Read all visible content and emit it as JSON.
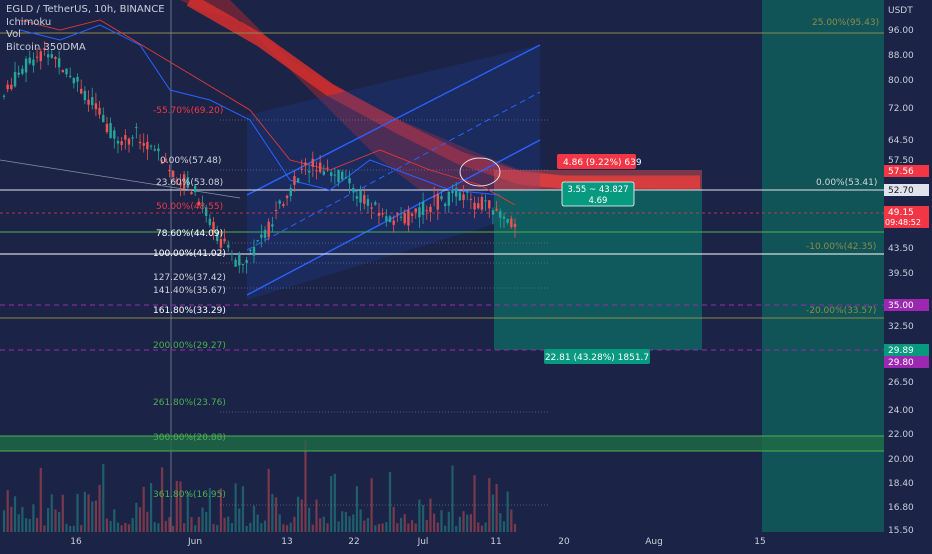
{
  "legend": {
    "title": "EGLD / TetherUS, 10h, BINANCE",
    "ind1": "Ichimoku",
    "ind2": "Vol",
    "ind3": "Bitcoin 350DMA"
  },
  "price_axis": {
    "currency": "USDT",
    "ticks": [
      "96.00",
      "88.00",
      "80.00",
      "72.00",
      "64.50",
      "57.50",
      "43.50",
      "39.50",
      "32.50",
      "26.50",
      "24.00",
      "22.00",
      "20.00",
      "18.40",
      "16.80",
      "15.50"
    ]
  },
  "price_tags": [
    {
      "text": "57.56",
      "color": "#f23645",
      "kind": "single"
    },
    {
      "text": "52.70",
      "color": "#ffffff",
      "kind": "light"
    },
    {
      "text": "49.15",
      "sub": "09:48:52",
      "color": "#f23645",
      "kind": "double"
    },
    {
      "text": "35.00",
      "color": "#9c27b0",
      "kind": "single"
    },
    {
      "text": "29.89",
      "color": "#089981",
      "kind": "single"
    },
    {
      "text": "29.80",
      "color": "#9c27b0",
      "kind": "single"
    }
  ],
  "time_axis": [
    "16",
    "Jun",
    "13",
    "22",
    "Jul",
    "11",
    "20",
    "Aug",
    "15"
  ],
  "fib_left": [
    {
      "text": "0.00%(57.48)",
      "color": "#d1d4dc"
    },
    {
      "text": "23.60%(53.08)",
      "color": "#d1d4dc"
    },
    {
      "text": "50.00%(48.55)",
      "color": "#f23645"
    },
    {
      "text": "78.60%(44.09)",
      "color": "#ffffff"
    },
    {
      "text": "100.00%(41.02)",
      "color": "#ffffff"
    },
    {
      "text": "127.20%(37.42)",
      "color": "#d1d4dc"
    },
    {
      "text": "141.40%(35.67)",
      "color": "#d1d4dc"
    },
    {
      "text": "161.80%(33.29)",
      "color": "#ffffff"
    },
    {
      "text": "200.00%(29.27)",
      "color": "#4caf50"
    },
    {
      "text": "261.80%(23.76)",
      "color": "#4caf50"
    },
    {
      "text": "300.00%(20.88)",
      "color": "#4caf50"
    },
    {
      "text": "361.80%(16.95)",
      "color": "#4caf50"
    },
    {
      "text": "-55.70%(69.20)",
      "color": "#f23645"
    }
  ],
  "fib_right": [
    {
      "text": "25.00%(95.43)",
      "color": "#8d8a4a"
    },
    {
      "text": "0.00%(53.41)",
      "color": "#d1d4dc"
    },
    {
      "text": "-10.00%(42.35)",
      "color": "#8d8a4a"
    },
    {
      "text": "-20.00%(33.57)",
      "color": "#8d8a4a"
    }
  ],
  "position_labels": {
    "stop": "4.86 (9.22%) 639",
    "entry_line1": "3.55 ~ 43.827",
    "entry_line2": "4.69",
    "target": "22.81 (43.28%) 1851.7"
  },
  "colors": {
    "background": "#1b2447",
    "up": "#26a69a",
    "down": "#ef5350",
    "channel": "#2962ff",
    "kumo": "#e53935",
    "target_zone": "#0e6b63",
    "support_band": "#1e6b45"
  },
  "chart_data": {
    "type": "candlestick",
    "symbol": "EGLD / TetherUS",
    "timeframe": "10h",
    "exchange": "BINANCE",
    "y_scale": "log",
    "ylim": [
      15.5,
      100
    ],
    "last_price": 49.15,
    "countdown": "09:48:52",
    "approx_closes": [
      78,
      85,
      90,
      92,
      88,
      83,
      76,
      70,
      66,
      68,
      65,
      61,
      58,
      55,
      50,
      45,
      42,
      44,
      47,
      52,
      57,
      61,
      60,
      58,
      55,
      52,
      50,
      49,
      50,
      52,
      53,
      54,
      53,
      52,
      50,
      49
    ]
  }
}
